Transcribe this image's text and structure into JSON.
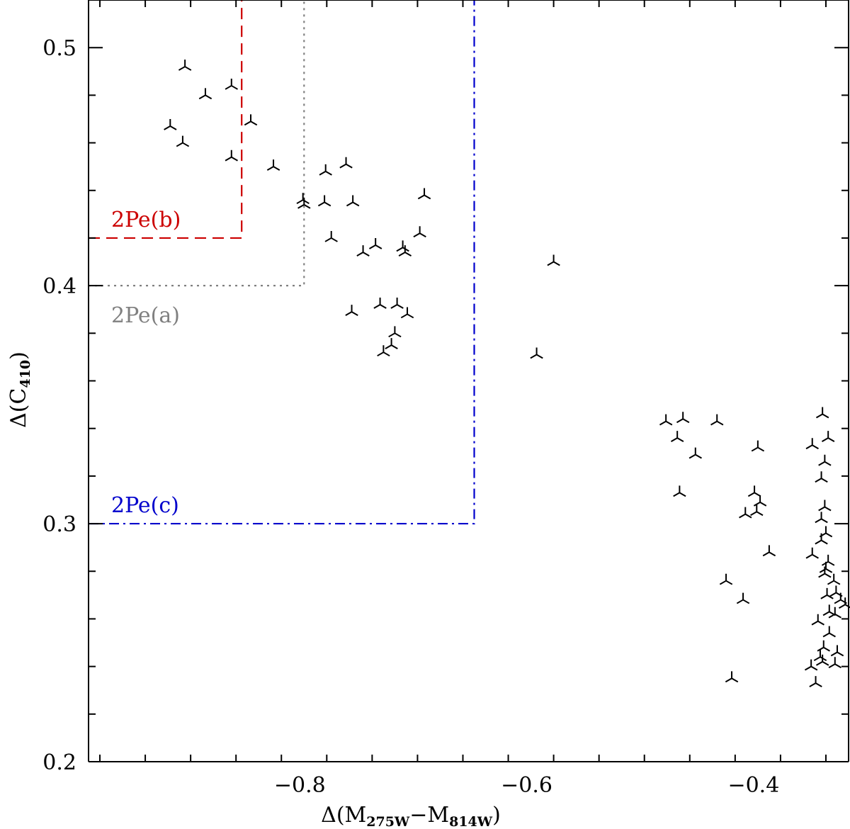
{
  "chart_data": {
    "type": "scatter",
    "title": "",
    "xlabel": {
      "prefix": "Δ(M",
      "sub1": "275W",
      "mid": "−M",
      "sub2": "814W",
      "suffix": ")"
    },
    "ylabel": {
      "prefix": "Δ(C",
      "sub": "410",
      "suffix": ")"
    },
    "xlim": [
      -0.99,
      -0.32
    ],
    "ylim": [
      0.2,
      0.52
    ],
    "xticks": [
      -0.8,
      -0.6,
      -0.4
    ],
    "xtick_labels": [
      "−0.8",
      "−0.6",
      "−0.4"
    ],
    "yticks": [
      0.2,
      0.3,
      0.4,
      0.5
    ],
    "ytick_labels": [
      "0.2",
      "0.3",
      "0.4",
      "0.5"
    ],
    "marker": "tri-down",
    "regions": [
      {
        "label": "2Pe(a)",
        "x_max": -0.8,
        "y_min": 0.4,
        "color": "#808080",
        "style": "dotted"
      },
      {
        "label": "2Pe(b)",
        "x_max": -0.855,
        "y_min": 0.42,
        "color": "#cc0000",
        "style": "dashed"
      },
      {
        "label": "2Pe(c)",
        "x_max": -0.65,
        "y_min": 0.3,
        "color": "#0000cc",
        "style": "dashdot"
      }
    ],
    "points": [
      [
        -0.905,
        0.492
      ],
      [
        -0.887,
        0.48
      ],
      [
        -0.864,
        0.484
      ],
      [
        -0.918,
        0.467
      ],
      [
        -0.907,
        0.46
      ],
      [
        -0.847,
        0.469
      ],
      [
        -0.864,
        0.454
      ],
      [
        -0.827,
        0.45
      ],
      [
        -0.781,
        0.448
      ],
      [
        -0.763,
        0.451
      ],
      [
        -0.801,
        0.436
      ],
      [
        -0.8,
        0.434
      ],
      [
        -0.782,
        0.435
      ],
      [
        -0.757,
        0.435
      ],
      [
        -0.694,
        0.438
      ],
      [
        -0.776,
        0.42
      ],
      [
        -0.737,
        0.417
      ],
      [
        -0.748,
        0.414
      ],
      [
        -0.713,
        0.416
      ],
      [
        -0.711,
        0.414
      ],
      [
        -0.698,
        0.422
      ],
      [
        -0.758,
        0.389
      ],
      [
        -0.733,
        0.392
      ],
      [
        -0.718,
        0.392
      ],
      [
        -0.709,
        0.388
      ],
      [
        -0.72,
        0.38
      ],
      [
        -0.723,
        0.375
      ],
      [
        -0.73,
        0.372
      ],
      [
        -0.595,
        0.371
      ],
      [
        -0.58,
        0.41
      ],
      [
        -0.481,
        0.343
      ],
      [
        -0.466,
        0.344
      ],
      [
        -0.471,
        0.336
      ],
      [
        -0.436,
        0.343
      ],
      [
        -0.455,
        0.329
      ],
      [
        -0.469,
        0.313
      ],
      [
        -0.4,
        0.332
      ],
      [
        -0.403,
        0.313
      ],
      [
        -0.398,
        0.309
      ],
      [
        -0.411,
        0.304
      ],
      [
        -0.401,
        0.305
      ],
      [
        -0.39,
        0.288
      ],
      [
        -0.428,
        0.276
      ],
      [
        -0.413,
        0.268
      ],
      [
        -0.423,
        0.235
      ],
      [
        -0.343,
        0.346
      ],
      [
        -0.352,
        0.333
      ],
      [
        -0.338,
        0.336
      ],
      [
        -0.341,
        0.326
      ],
      [
        -0.344,
        0.319
      ],
      [
        -0.341,
        0.307
      ],
      [
        -0.344,
        0.302
      ],
      [
        -0.344,
        0.293
      ],
      [
        -0.34,
        0.296
      ],
      [
        -0.338,
        0.284
      ],
      [
        -0.34,
        0.281
      ],
      [
        -0.341,
        0.279
      ],
      [
        -0.352,
        0.287
      ],
      [
        -0.339,
        0.27
      ],
      [
        -0.333,
        0.276
      ],
      [
        -0.331,
        0.271
      ],
      [
        -0.327,
        0.268
      ],
      [
        -0.323,
        0.266
      ],
      [
        -0.332,
        0.262
      ],
      [
        -0.337,
        0.263
      ],
      [
        -0.347,
        0.259
      ],
      [
        -0.337,
        0.254
      ],
      [
        -0.342,
        0.248
      ],
      [
        -0.345,
        0.244
      ],
      [
        -0.343,
        0.242
      ],
      [
        -0.33,
        0.246
      ],
      [
        -0.332,
        0.241
      ],
      [
        -0.353,
        0.24
      ],
      [
        -0.349,
        0.233
      ]
    ]
  }
}
